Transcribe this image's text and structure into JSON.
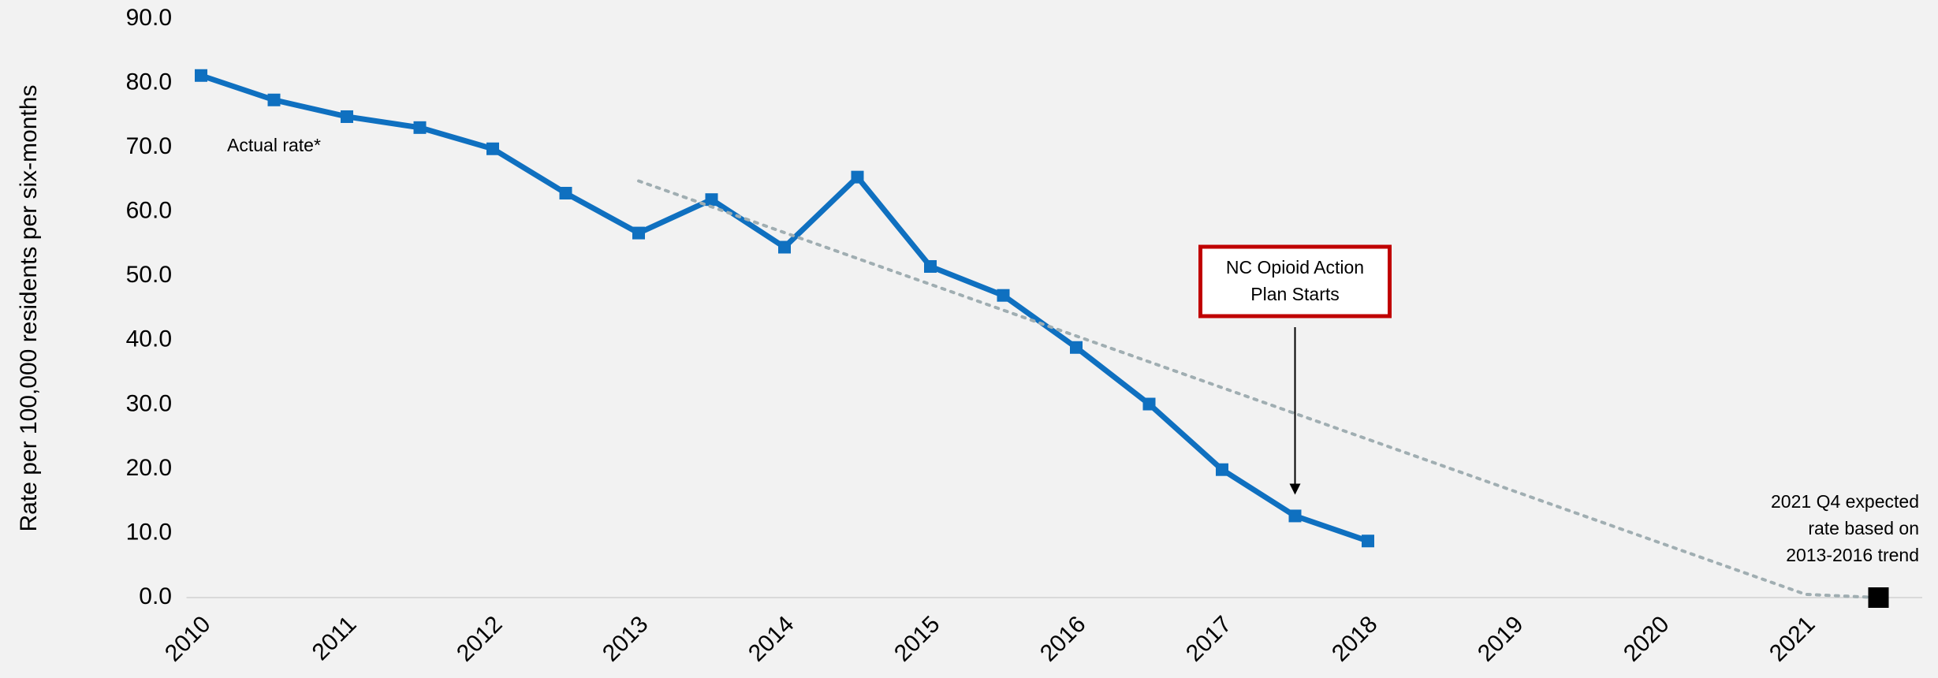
{
  "chart_data": {
    "type": "line",
    "y_label": "Rate per 100,000 residents per six-months",
    "xlim": [
      2009.9,
      2021.8
    ],
    "xticks": [
      2010,
      2011,
      2012,
      2013,
      2014,
      2015,
      2016,
      2017,
      2018,
      2019,
      2020,
      2021
    ],
    "ylim": [
      0,
      90
    ],
    "yticks": [
      {
        "value": 0,
        "label": "0.0"
      },
      {
        "value": 10,
        "label": "10.0"
      },
      {
        "value": 20,
        "label": "20.0"
      },
      {
        "value": 30,
        "label": "30.0"
      },
      {
        "value": 40,
        "label": "40.0"
      },
      {
        "value": 50,
        "label": "50.0"
      },
      {
        "value": 60,
        "label": "60.0"
      },
      {
        "value": 70,
        "label": "70.0"
      },
      {
        "value": 80,
        "label": "80.0"
      },
      {
        "value": 90,
        "label": "90.0"
      }
    ],
    "series": [
      {
        "name": "Actual rate*",
        "color": "#0f70c0",
        "style": "solid",
        "marker": "square",
        "x": [
          2010,
          2010.5,
          2011,
          2011.5,
          2012,
          2012.5,
          2013,
          2013.5,
          2014,
          2014.5,
          2015,
          2015.5,
          2016,
          2016.5,
          2017,
          2017.5,
          2018
        ],
        "values": [
          81.2,
          77.4,
          74.8,
          73.1,
          69.8,
          62.9,
          56.7,
          61.9,
          54.5,
          65.4,
          51.5,
          47.0,
          38.9,
          30.1,
          19.9,
          12.7,
          8.8
        ]
      },
      {
        "color": "#a0aeb2",
        "style": "dotted",
        "marker": "none",
        "x": [
          2013,
          2021,
          2021.5
        ],
        "values": [
          64.8,
          0.5,
          0
        ]
      },
      {
        "color": "#000000",
        "style": "none",
        "marker": "bigsquare",
        "x": [
          2021.5
        ],
        "values": [
          0
        ]
      }
    ],
    "annotations": [
      {
        "lines": [
          "NC Opioid Action",
          "Plan Starts"
        ],
        "box_color": "#c00000",
        "arrow_x": 2017.5,
        "arrow_to": 16
      },
      {
        "lines": [
          "2021 Q4 expected",
          "rate based on",
          "2013-2016 trend"
        ]
      }
    ]
  }
}
